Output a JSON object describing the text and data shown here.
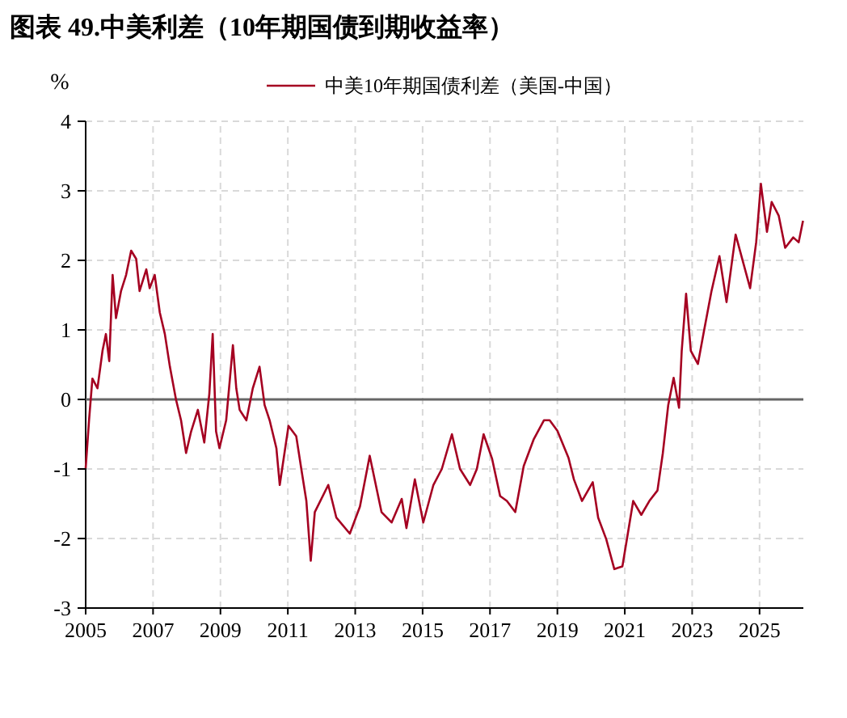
{
  "chart_data": {
    "type": "line",
    "title": "图表 49.中美利差（10年期国债到期收益率）",
    "ylabel": "%",
    "xlim": [
      2005,
      2026.3
    ],
    "xticks": [
      2005,
      2007,
      2009,
      2011,
      2013,
      2015,
      2017,
      2019,
      2021,
      2023,
      2025
    ],
    "ylim": [
      -3,
      4
    ],
    "yticks": [
      -3,
      -2,
      -1,
      0,
      1,
      2,
      3,
      4
    ],
    "grid": true,
    "legend": "top",
    "series": [
      {
        "name": "中美10年期国债利差（美国-中国）",
        "color": "#a50021",
        "x": [
          2005.0,
          2005.1,
          2005.2,
          2005.35,
          2005.5,
          2005.6,
          2005.7,
          2005.8,
          2005.9,
          2006.05,
          2006.2,
          2006.35,
          2006.5,
          2006.6,
          2006.8,
          2006.9,
          2007.05,
          2007.2,
          2007.35,
          2007.5,
          2007.68,
          2007.83,
          2007.98,
          2008.13,
          2008.33,
          2008.52,
          2008.67,
          2008.77,
          2008.87,
          2008.97,
          2009.17,
          2009.37,
          2009.47,
          2009.57,
          2009.77,
          2009.96,
          2010.16,
          2010.31,
          2010.46,
          2010.66,
          2010.76,
          2011.02,
          2011.25,
          2011.4,
          2011.55,
          2011.68,
          2011.8,
          2012.2,
          2012.44,
          2012.84,
          2013.14,
          2013.43,
          2013.78,
          2014.08,
          2014.38,
          2014.52,
          2014.77,
          2015.02,
          2015.32,
          2015.57,
          2015.87,
          2016.11,
          2016.41,
          2016.61,
          2016.81,
          2017.06,
          2017.3,
          2017.5,
          2017.75,
          2018.0,
          2018.3,
          2018.6,
          2018.77,
          2019.0,
          2019.33,
          2019.49,
          2019.73,
          2020.05,
          2020.21,
          2020.45,
          2020.69,
          2020.93,
          2021.09,
          2021.25,
          2021.49,
          2021.73,
          2021.97,
          2022.13,
          2022.29,
          2022.45,
          2022.61,
          2022.69,
          2022.82,
          2022.96,
          2023.17,
          2023.33,
          2023.57,
          2023.81,
          2024.02,
          2024.29,
          2024.53,
          2024.72,
          2024.9,
          2025.04,
          2025.22,
          2025.36,
          2025.57,
          2025.76,
          2026.0,
          2026.16,
          2026.29
        ],
        "values": [
          -0.99,
          -0.3,
          0.3,
          0.16,
          0.7,
          0.94,
          0.55,
          1.79,
          1.17,
          1.56,
          1.79,
          2.14,
          2.02,
          1.56,
          1.87,
          1.6,
          1.79,
          1.25,
          0.94,
          0.47,
          0.0,
          -0.3,
          -0.77,
          -0.46,
          -0.15,
          -0.62,
          0.08,
          0.94,
          -0.46,
          -0.7,
          -0.3,
          0.78,
          0.16,
          -0.15,
          -0.3,
          0.16,
          0.47,
          -0.08,
          -0.3,
          -0.7,
          -1.23,
          -0.38,
          -0.53,
          -1.0,
          -1.46,
          -2.32,
          -1.62,
          -1.23,
          -1.7,
          -1.93,
          -1.54,
          -0.81,
          -1.62,
          -1.77,
          -1.43,
          -1.85,
          -1.15,
          -1.77,
          -1.23,
          -1.0,
          -0.5,
          -1.0,
          -1.23,
          -1.0,
          -0.5,
          -0.85,
          -1.39,
          -1.46,
          -1.62,
          -0.96,
          -0.57,
          -0.3,
          -0.3,
          -0.45,
          -0.84,
          -1.15,
          -1.46,
          -1.19,
          -1.7,
          -2.01,
          -2.44,
          -2.4,
          -1.93,
          -1.46,
          -1.66,
          -1.46,
          -1.31,
          -0.77,
          -0.08,
          0.31,
          -0.12,
          0.7,
          1.52,
          0.7,
          0.51,
          0.93,
          1.55,
          2.06,
          1.4,
          2.37,
          1.94,
          1.6,
          2.26,
          3.1,
          2.41,
          2.84,
          2.64,
          2.18,
          2.33,
          2.26,
          2.57
        ]
      }
    ]
  }
}
